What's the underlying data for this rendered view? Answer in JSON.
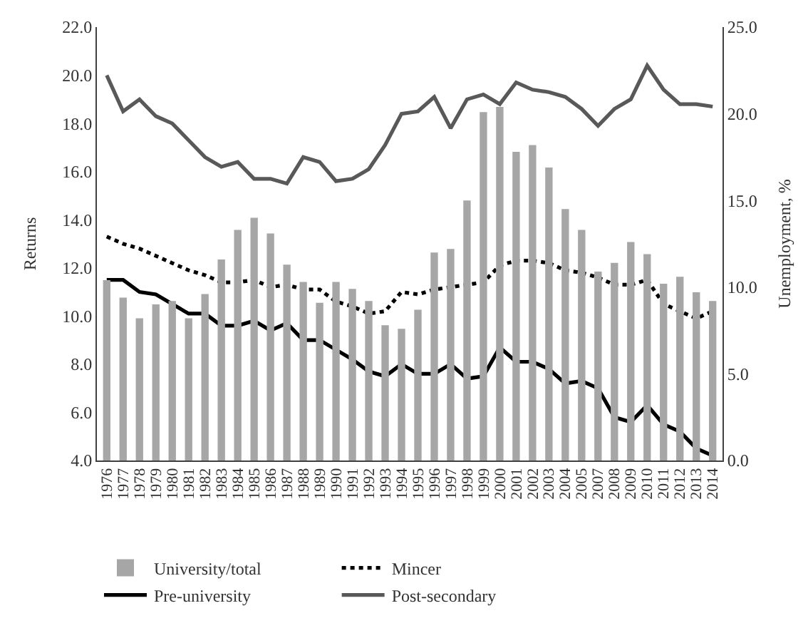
{
  "chart_data": {
    "type": "bar",
    "ylabel": "Returns",
    "y2label": "Unemployment, %",
    "categories": [
      "1976",
      "1977",
      "1978",
      "1979",
      "1980",
      "1981",
      "1982",
      "1983",
      "1984",
      "1985",
      "1986",
      "1987",
      "1988",
      "1989",
      "1990",
      "1991",
      "1992",
      "1993",
      "1994",
      "1995",
      "1996",
      "1997",
      "1998",
      "1999",
      "2000",
      "2001",
      "2002",
      "2003",
      "2004",
      "2005",
      "2007",
      "2008",
      "2009",
      "2010",
      "2011",
      "2012",
      "2013",
      "2014"
    ],
    "series": [
      {
        "name": "University/total",
        "axis": "y2",
        "color": "#a6a6a6",
        "values": [
          10.4,
          9.4,
          8.2,
          9.0,
          9.2,
          8.2,
          9.6,
          11.6,
          13.3,
          14.0,
          13.1,
          11.3,
          10.3,
          9.1,
          10.3,
          9.9,
          9.2,
          7.8,
          7.6,
          8.7,
          12.0,
          12.2,
          15.0,
          20.1,
          20.4,
          17.8,
          18.2,
          16.9,
          14.5,
          13.3,
          10.9,
          11.4,
          12.6,
          11.9,
          10.2,
          10.6,
          9.7,
          9.2
        ]
      },
      {
        "name": "Mincer",
        "type": "line",
        "line_style": "dotted",
        "color": "#000000",
        "values": [
          13.3,
          13.0,
          12.8,
          12.5,
          12.2,
          11.9,
          11.7,
          11.4,
          11.4,
          11.5,
          11.2,
          11.3,
          11.1,
          11.1,
          10.6,
          10.4,
          10.1,
          10.2,
          11.0,
          10.9,
          11.1,
          11.2,
          11.3,
          11.4,
          12.1,
          12.3,
          12.3,
          12.2,
          11.9,
          11.8,
          11.6,
          11.3,
          11.3,
          11.5,
          10.5,
          10.2,
          9.9,
          10.2
        ]
      },
      {
        "name": "Pre-university",
        "type": "line",
        "line_style": "solid",
        "color": "#000000",
        "values": [
          11.5,
          11.5,
          11.0,
          10.9,
          10.5,
          10.1,
          10.1,
          9.6,
          9.6,
          9.8,
          9.4,
          9.7,
          9.0,
          9.0,
          8.6,
          8.2,
          7.7,
          7.5,
          8.0,
          7.6,
          7.6,
          8.0,
          7.4,
          7.5,
          8.7,
          8.1,
          8.1,
          7.8,
          7.2,
          7.3,
          7.0,
          5.8,
          5.6,
          6.3,
          5.5,
          5.2,
          4.5,
          4.2
        ]
      },
      {
        "name": "Post-secondary",
        "type": "line",
        "line_style": "solid",
        "color": "#595959",
        "values": [
          20.0,
          18.5,
          19.0,
          18.3,
          18.0,
          17.3,
          16.6,
          16.2,
          16.4,
          15.7,
          15.7,
          15.5,
          16.6,
          16.4,
          15.6,
          15.7,
          16.1,
          17.1,
          18.4,
          18.5,
          19.1,
          17.8,
          19.0,
          19.2,
          18.8,
          19.7,
          19.4,
          19.3,
          19.1,
          18.6,
          17.9,
          18.6,
          19.0,
          20.4,
          19.4,
          18.8,
          18.8,
          18.7
        ]
      }
    ],
    "ylim": [
      4,
      22
    ],
    "yticks": [
      {
        "value": 4,
        "label": "4.0"
      },
      {
        "value": 6,
        "label": "6.0"
      },
      {
        "value": 8,
        "label": "8.0"
      },
      {
        "value": 10,
        "label": "10.0"
      },
      {
        "value": 12,
        "label": "12.0"
      },
      {
        "value": 14,
        "label": "14.0"
      },
      {
        "value": 16,
        "label": "16.0"
      },
      {
        "value": 18,
        "label": "18.0"
      },
      {
        "value": 20,
        "label": "20.0"
      },
      {
        "value": 22,
        "label": "22.0"
      }
    ],
    "y2lim": [
      0,
      25
    ],
    "y2ticks": [
      {
        "value": 0,
        "label": "0.0"
      },
      {
        "value": 5,
        "label": "5.0"
      },
      {
        "value": 10,
        "label": "10.0"
      },
      {
        "value": 15,
        "label": "15.0"
      },
      {
        "value": 20,
        "label": "20.0"
      },
      {
        "value": 25,
        "label": "25.0"
      }
    ],
    "legend": "bottom"
  }
}
